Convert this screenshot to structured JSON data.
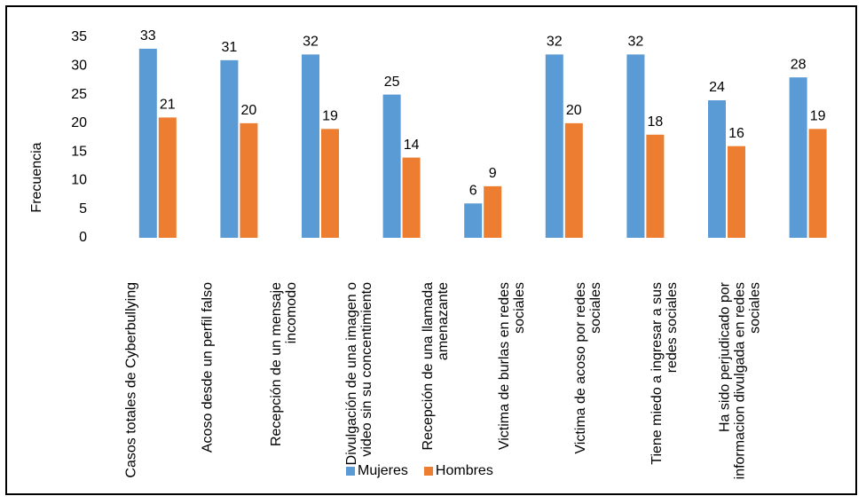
{
  "chart_data": {
    "type": "bar",
    "y_label": "Frecuencia",
    "categories": [
      "Casos totales de Cyberbullying",
      "Acoso desde un perfil falso",
      "Recepción de un mensaje incomodo",
      "Divulgación de una imagen o video sin su concentimiento",
      "Recepción de una llamada amenazante",
      "Victima de burlas en redes sociales",
      "Victima de acoso por redes sociales",
      "Tiene miedo a ingresar a sus redes sociales",
      "Ha sido perjudicado por informacion divulgada en redes sociales"
    ],
    "series": [
      {
        "name": "Mujeres",
        "color": "#5b9bd5",
        "values": [
          33,
          31,
          32,
          25,
          6,
          32,
          32,
          24,
          28
        ]
      },
      {
        "name": "Hombres",
        "color": "#ed7d31",
        "values": [
          21,
          20,
          19,
          14,
          9,
          20,
          18,
          16,
          19
        ]
      }
    ],
    "ylim": [
      0,
      35
    ],
    "yticks": [
      0,
      5,
      10,
      15,
      20,
      25,
      30,
      35
    ],
    "grid": false,
    "legend": "bottom"
  }
}
